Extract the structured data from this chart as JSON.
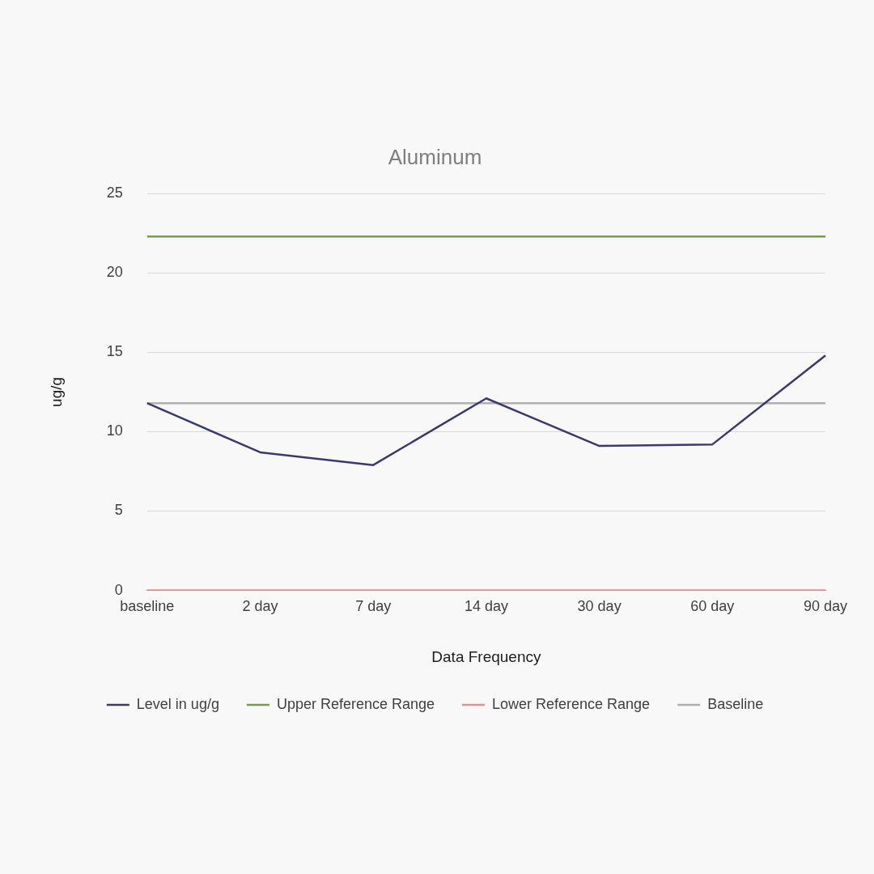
{
  "chart_data": {
    "type": "line",
    "title": "Aluminum",
    "xlabel": "Data Frequency",
    "ylabel": "ug/g",
    "categories": [
      "baseline",
      "2 day",
      "7 day",
      "14 day",
      "30 day",
      "60 day",
      "90 day"
    ],
    "series": [
      {
        "name": "Level in ug/g",
        "color": "#3b3a6e",
        "values": [
          11.8,
          8.7,
          7.9,
          12.1,
          9.1,
          9.2,
          14.8
        ]
      },
      {
        "name": "Upper Reference Range",
        "color": "#70a044",
        "values": [
          22.3,
          22.3,
          22.3,
          22.3,
          22.3,
          22.3,
          22.3
        ]
      },
      {
        "name": "Lower Reference Range",
        "color": "#e8908a",
        "values": [
          0,
          0,
          0,
          0,
          0,
          0,
          0
        ]
      },
      {
        "name": "Baseline",
        "color": "#b0b0b0",
        "values": [
          11.8,
          11.8,
          11.8,
          11.8,
          11.8,
          11.8,
          11.8
        ]
      }
    ],
    "ylim": [
      0,
      25
    ],
    "yticks": [
      0,
      5,
      10,
      15,
      20,
      25
    ],
    "grid": "y",
    "legend": "bottom",
    "marker": "none",
    "line_style": "solid"
  }
}
